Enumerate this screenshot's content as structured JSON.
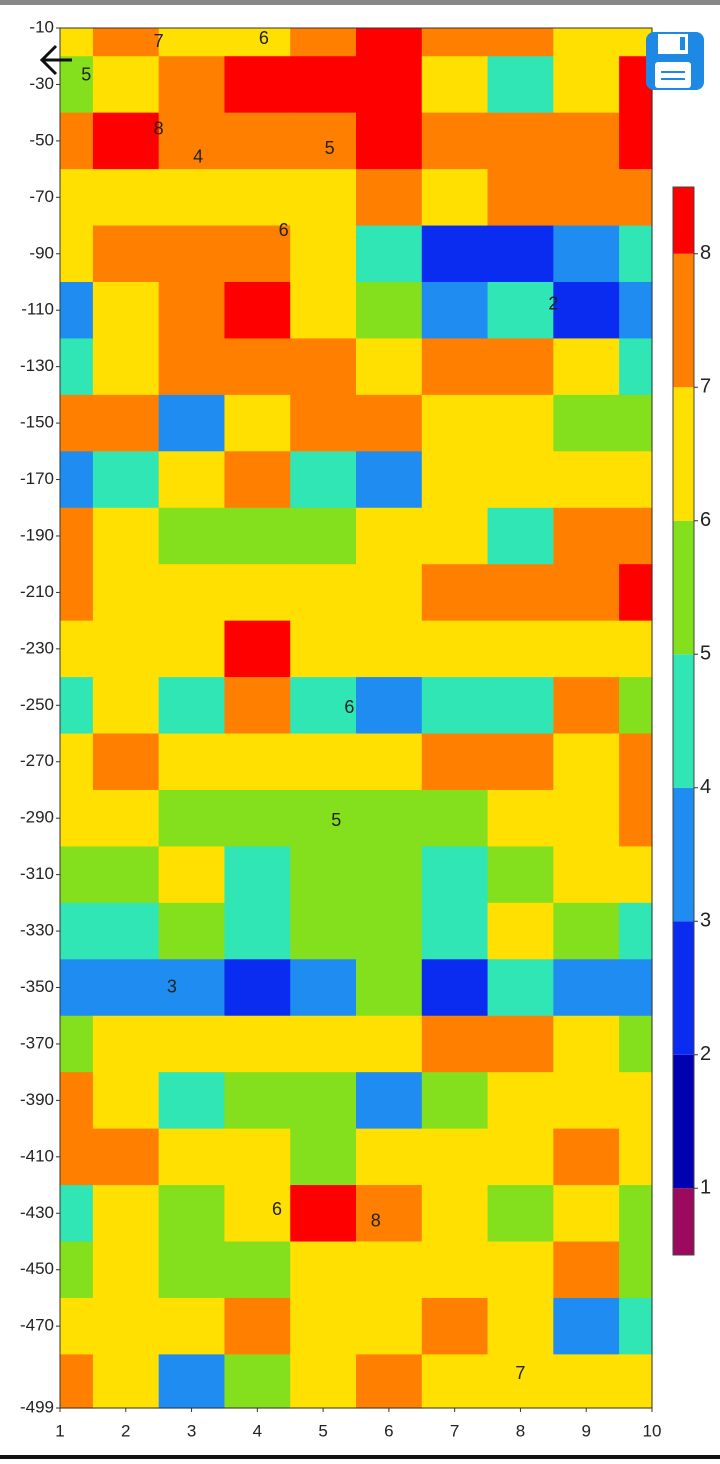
{
  "chart_data": {
    "type": "contour",
    "x": [
      1,
      2,
      3,
      4,
      5,
      6,
      7,
      8,
      9,
      10
    ],
    "y": [
      -10,
      -30,
      -50,
      -70,
      -90,
      -110,
      -130,
      -150,
      -170,
      -190,
      -210,
      -230,
      -250,
      -270,
      -290,
      -310,
      -330,
      -350,
      -370,
      -390,
      -410,
      -430,
      -450,
      -470,
      -490
    ],
    "z": [
      [
        6.5,
        7,
        6.5,
        6,
        7,
        8,
        7,
        7,
        6,
        6.5
      ],
      [
        5,
        6,
        7,
        8,
        8,
        8,
        6,
        4.5,
        6,
        8
      ],
      [
        7.5,
        8,
        7,
        7,
        7,
        8,
        7,
        7,
        7,
        8
      ],
      [
        6,
        6.5,
        6.5,
        6.5,
        6.5,
        7,
        6.5,
        7.5,
        7,
        7.5
      ],
      [
        6.5,
        7.5,
        7,
        7,
        6.5,
        4,
        2.5,
        2.5,
        3.5,
        4
      ],
      [
        3.5,
        6,
        7,
        8,
        6,
        5,
        3,
        4,
        2.5,
        3
      ],
      [
        4.5,
        6.5,
        7,
        7,
        7,
        6,
        7,
        7.5,
        6,
        4
      ],
      [
        7,
        7,
        3,
        6.5,
        7,
        7,
        6.5,
        6,
        5.5,
        5
      ],
      [
        3.5,
        4.5,
        6.5,
        7.5,
        4.5,
        3.5,
        6.5,
        6.5,
        6.5,
        6
      ],
      [
        7,
        6,
        5.5,
        5,
        5.5,
        6,
        6.5,
        4.5,
        7.5,
        7
      ],
      [
        7,
        6.5,
        6,
        6,
        6,
        6.5,
        7,
        7,
        7,
        8
      ],
      [
        6,
        6,
        6.5,
        8,
        6.5,
        6.5,
        6.5,
        6.5,
        6,
        6.5
      ],
      [
        4.5,
        6,
        4.5,
        7.5,
        4,
        3.5,
        4.5,
        4,
        7,
        5.5
      ],
      [
        6.5,
        7,
        6,
        6,
        6,
        6.5,
        7,
        7,
        6.5,
        7
      ],
      [
        6.5,
        6,
        5.5,
        5,
        5,
        5,
        5.5,
        6,
        6,
        7.5
      ],
      [
        5.5,
        5,
        6,
        4.5,
        5,
        5,
        4,
        5,
        6,
        6.5
      ],
      [
        4,
        4,
        5.5,
        4.5,
        5,
        5.5,
        4.5,
        6,
        5,
        4.5
      ],
      [
        3.5,
        3.5,
        3,
        2.5,
        3,
        5,
        2.5,
        4.5,
        3.5,
        3.5
      ],
      [
        5.5,
        6,
        6.5,
        6,
        6,
        6.5,
        7.5,
        7,
        6.5,
        5.5
      ],
      [
        7,
        6.5,
        4,
        5.5,
        5,
        3,
        5,
        6,
        6,
        6
      ],
      [
        7,
        7.5,
        6,
        6,
        5.5,
        6.5,
        6.5,
        6,
        7.5,
        6.5
      ],
      [
        4.5,
        6,
        5.5,
        6.5,
        8,
        7.5,
        6.5,
        5.5,
        6.5,
        5.5
      ],
      [
        5,
        6.5,
        5,
        5.5,
        6,
        6.5,
        6,
        6.5,
        7.5,
        5.5
      ],
      [
        6,
        6,
        6,
        7.5,
        6.5,
        6,
        7.5,
        6.5,
        3.5,
        4.5
      ],
      [
        7,
        6.5,
        3,
        5,
        6.5,
        7,
        6.5,
        6.5,
        6,
        6.5
      ]
    ],
    "xlim": [
      1,
      10
    ],
    "xticks": [
      1,
      2,
      3,
      4,
      5,
      6,
      7,
      8,
      9,
      10
    ],
    "ylim": [
      -499,
      -10
    ],
    "yticks": [
      -10,
      -30,
      -50,
      -70,
      -90,
      -110,
      -130,
      -150,
      -170,
      -190,
      -210,
      -230,
      -250,
      -270,
      -290,
      -310,
      -330,
      -350,
      -370,
      -390,
      -410,
      -430,
      -450,
      -470,
      -499
    ],
    "levels": [
      1,
      2,
      3,
      4,
      5,
      6,
      7,
      8
    ],
    "colors": [
      "#9c0a5e",
      "#0000b0",
      "#0a2cf0",
      "#1e8cf0",
      "#30e6b4",
      "#84e01c",
      "#ffe000",
      "#ff8000",
      "#ff0000"
    ],
    "clim": [
      0.5,
      8.5
    ],
    "contour_labels": [
      {
        "x": 2.5,
        "y": -15,
        "value": 7
      },
      {
        "x": 4.1,
        "y": -14,
        "value": 6
      },
      {
        "x": 1.4,
        "y": -27,
        "value": 5
      },
      {
        "x": 2.5,
        "y": -46,
        "value": 8
      },
      {
        "x": 3.1,
        "y": -56,
        "value": 4
      },
      {
        "x": 5.1,
        "y": -53,
        "value": 5
      },
      {
        "x": 4.4,
        "y": -82,
        "value": 6
      },
      {
        "x": 8.5,
        "y": -108,
        "value": 2
      },
      {
        "x": 5.4,
        "y": -251,
        "value": 6
      },
      {
        "x": 5.2,
        "y": -291,
        "value": 5
      },
      {
        "x": 2.7,
        "y": -350,
        "value": 3
      },
      {
        "x": 4.3,
        "y": -429,
        "value": 6
      },
      {
        "x": 5.8,
        "y": -433,
        "value": 8
      },
      {
        "x": 8.0,
        "y": -487,
        "value": 7
      }
    ]
  }
}
